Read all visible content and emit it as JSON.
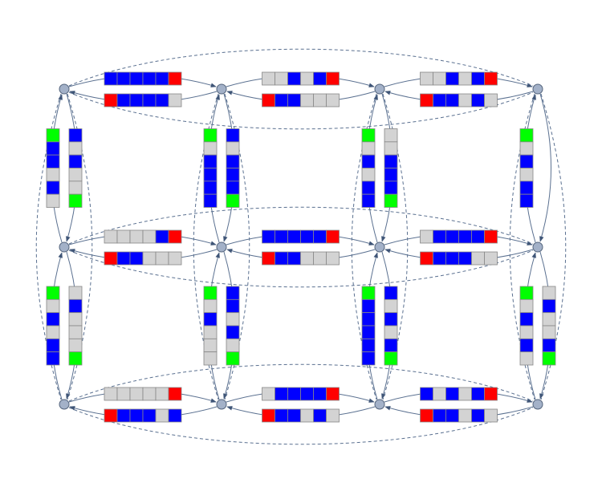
{
  "diagram": {
    "horizontal": [
      [
        {
          "upper": [
            "blue",
            "blue",
            "blue",
            "blue",
            "blue",
            "red"
          ],
          "lower": [
            "red",
            "blue",
            "blue",
            "blue",
            "blue",
            "lightgray"
          ]
        },
        {
          "upper": [
            "lightgray",
            "lightgray",
            "blue",
            "lightgray",
            "blue",
            "red"
          ],
          "lower": [
            "red",
            "blue",
            "blue",
            "lightgray",
            "lightgray",
            "lightgray"
          ]
        },
        {
          "upper": [
            "lightgray",
            "lightgray",
            "blue",
            "lightgray",
            "blue",
            "red"
          ],
          "lower": [
            "red",
            "blue",
            "blue",
            "lightgray",
            "blue",
            "lightgray"
          ]
        }
      ],
      [
        {
          "upper": [
            "lightgray",
            "lightgray",
            "lightgray",
            "lightgray",
            "blue",
            "red"
          ],
          "lower": [
            "red",
            "blue",
            "blue",
            "lightgray",
            "lightgray",
            "lightgray"
          ]
        },
        {
          "upper": [
            "blue",
            "blue",
            "blue",
            "blue",
            "blue",
            "red"
          ],
          "lower": [
            "red",
            "blue",
            "blue",
            "lightgray",
            "lightgray",
            "lightgray"
          ]
        },
        {
          "upper": [
            "lightgray",
            "blue",
            "blue",
            "blue",
            "blue",
            "red"
          ],
          "lower": [
            "red",
            "blue",
            "blue",
            "blue",
            "lightgray",
            "lightgray"
          ]
        }
      ],
      [
        {
          "upper": [
            "lightgray",
            "lightgray",
            "lightgray",
            "lightgray",
            "lightgray",
            "red"
          ],
          "lower": [
            "red",
            "blue",
            "blue",
            "blue",
            "lightgray",
            "blue"
          ]
        },
        {
          "upper": [
            "lightgray",
            "blue",
            "blue",
            "blue",
            "blue",
            "red"
          ],
          "lower": [
            "red",
            "blue",
            "blue",
            "lightgray",
            "blue",
            "lightgray"
          ]
        },
        {
          "upper": [
            "blue",
            "lightgray",
            "blue",
            "lightgray",
            "blue",
            "red"
          ],
          "lower": [
            "red",
            "blue",
            "blue",
            "lightgray",
            "blue",
            "lightgray"
          ]
        }
      ]
    ],
    "vertical": [
      [
        {
          "left": [
            "lime",
            "blue",
            "blue",
            "lightgray",
            "blue",
            "lightgray"
          ],
          "right": [
            "blue",
            "lightgray",
            "blue",
            "lightgray",
            "lightgray",
            "lime"
          ]
        },
        {
          "left": [
            "lime",
            "lightgray",
            "blue",
            "blue",
            "blue",
            "blue"
          ],
          "right": [
            "blue",
            "lightgray",
            "blue",
            "blue",
            "blue",
            "lime"
          ]
        },
        {
          "left": [
            "lime",
            "lightgray",
            "blue",
            "lightgray",
            "blue",
            "blue"
          ],
          "right": [
            "lightgray",
            "lightgray",
            "blue",
            "blue",
            "blue",
            "lime"
          ]
        },
        {
          "left": [
            "lime",
            "lightgray",
            "blue",
            "lightgray",
            "blue",
            "blue"
          ]
        }
      ],
      [
        {
          "left": [
            "lime",
            "lightgray",
            "blue",
            "lightgray",
            "blue",
            "blue"
          ],
          "right": [
            "lightgray",
            "blue",
            "lightgray",
            "lightgray",
            "lightgray",
            "lime"
          ]
        },
        {
          "left": [
            "lime",
            "lightgray",
            "blue",
            "lightgray",
            "lightgray",
            "lightgray"
          ],
          "right": [
            "blue",
            "blue",
            "lightgray",
            "blue",
            "lightgray",
            "lime"
          ]
        },
        {
          "left": [
            "lime",
            "blue",
            "blue",
            "blue",
            "blue",
            "blue"
          ],
          "right": [
            "blue",
            "lightgray",
            "blue",
            "lightgray",
            "blue",
            "lime"
          ]
        },
        {
          "left": [
            "lime",
            "lightgray",
            "blue",
            "lightgray",
            "blue",
            "lightgray"
          ],
          "right": [
            "lightgray",
            "blue",
            "lightgray",
            "lightgray",
            "blue",
            "lime"
          ]
        }
      ]
    ]
  }
}
